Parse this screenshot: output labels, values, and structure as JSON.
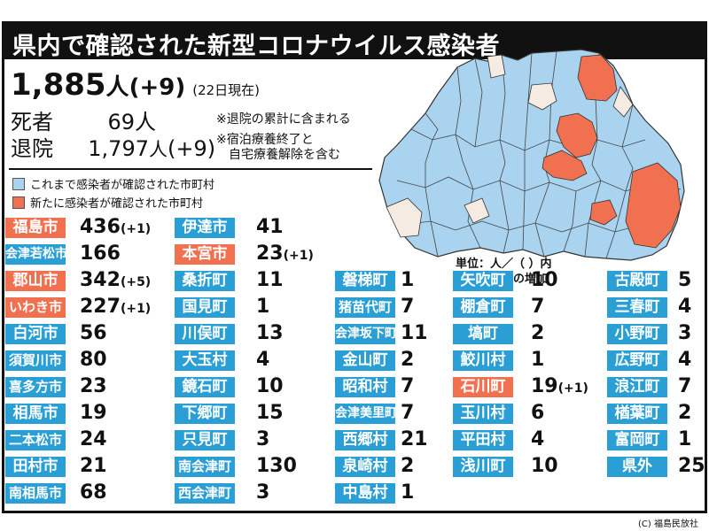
{
  "title": "県内で確認された新型コロナウイルス感染者",
  "total": {
    "count": "1,885",
    "unit": "人",
    "diff": "(+9)",
    "as_of": "(22日現在)"
  },
  "deaths": {
    "label": "死者",
    "value": "69",
    "unit": "人"
  },
  "recovered": {
    "label": "退院",
    "value": "1,797",
    "unit": "人",
    "diff": "(+9)"
  },
  "notes": {
    "deaths_note": "※退院の累計に含まれる",
    "recovered_note_1": "※宿泊療養終了と",
    "recovered_note_2": "自宅療養解除を含む"
  },
  "legend": {
    "confirmed_label": "これまで感染者が確認された市町村",
    "new_label": "新たに感染者が確認された市町村",
    "confirmed_color": "#a9d3ef",
    "new_color": "#f07050"
  },
  "unit_note": {
    "line1": "単位：人／（ ）内",
    "line2": "は前日からの増加"
  },
  "municipalities": [
    [
      {
        "name": "福島市",
        "value": "436",
        "diff": "(+1)",
        "new": true
      },
      {
        "name": "会津若松市",
        "value": "166",
        "diff": "",
        "new": false
      },
      {
        "name": "郡山市",
        "value": "342",
        "diff": "(+5)",
        "new": true
      },
      {
        "name": "いわき市",
        "value": "227",
        "diff": "(+1)",
        "new": true
      },
      {
        "name": "白河市",
        "value": "56",
        "diff": "",
        "new": false
      },
      {
        "name": "須賀川市",
        "value": "80",
        "diff": "",
        "new": false
      },
      {
        "name": "喜多方市",
        "value": "23",
        "diff": "",
        "new": false
      },
      {
        "name": "相馬市",
        "value": "19",
        "diff": "",
        "new": false
      },
      {
        "name": "二本松市",
        "value": "24",
        "diff": "",
        "new": false
      },
      {
        "name": "田村市",
        "value": "21",
        "diff": "",
        "new": false
      },
      {
        "name": "南相馬市",
        "value": "68",
        "diff": "",
        "new": false
      }
    ],
    [
      {
        "name": "伊達市",
        "value": "41",
        "diff": "",
        "new": false
      },
      {
        "name": "本宮市",
        "value": "23",
        "diff": "(+1)",
        "new": true
      },
      {
        "name": "桑折町",
        "value": "11",
        "diff": "",
        "new": false
      },
      {
        "name": "国見町",
        "value": "1",
        "diff": "",
        "new": false
      },
      {
        "name": "川俣町",
        "value": "13",
        "diff": "",
        "new": false
      },
      {
        "name": "大玉村",
        "value": "4",
        "diff": "",
        "new": false
      },
      {
        "name": "鏡石町",
        "value": "10",
        "diff": "",
        "new": false
      },
      {
        "name": "下郷町",
        "value": "15",
        "diff": "",
        "new": false
      },
      {
        "name": "只見町",
        "value": "3",
        "diff": "",
        "new": false
      },
      {
        "name": "南会津町",
        "value": "130",
        "diff": "",
        "new": false
      },
      {
        "name": "西会津町",
        "value": "3",
        "diff": "",
        "new": false
      }
    ],
    [
      {
        "name": "磐梯町",
        "value": "1",
        "diff": "",
        "new": false
      },
      {
        "name": "猪苗代町",
        "value": "7",
        "diff": "",
        "new": false
      },
      {
        "name": "会津坂下町",
        "value": "11",
        "diff": "",
        "new": false
      },
      {
        "name": "金山町",
        "value": "2",
        "diff": "",
        "new": false
      },
      {
        "name": "昭和村",
        "value": "7",
        "diff": "",
        "new": false
      },
      {
        "name": "会津美里町",
        "value": "7",
        "diff": "",
        "new": false
      },
      {
        "name": "西郷村",
        "value": "21",
        "diff": "",
        "new": false
      },
      {
        "name": "泉崎村",
        "value": "2",
        "diff": "",
        "new": false
      },
      {
        "name": "中島村",
        "value": "1",
        "diff": "",
        "new": false
      }
    ],
    [
      {
        "name": "矢吹町",
        "value": "10",
        "diff": "",
        "new": false
      },
      {
        "name": "棚倉町",
        "value": "7",
        "diff": "",
        "new": false
      },
      {
        "name": "塙町",
        "value": "2",
        "diff": "",
        "new": false
      },
      {
        "name": "鮫川村",
        "value": "1",
        "diff": "",
        "new": false
      },
      {
        "name": "石川町",
        "value": "19",
        "diff": "(+1)",
        "new": true
      },
      {
        "name": "玉川村",
        "value": "6",
        "diff": "",
        "new": false
      },
      {
        "name": "平田村",
        "value": "4",
        "diff": "",
        "new": false
      },
      {
        "name": "浅川町",
        "value": "10",
        "diff": "",
        "new": false
      }
    ],
    [
      {
        "name": "古殿町",
        "value": "5",
        "diff": "",
        "new": false
      },
      {
        "name": "三春町",
        "value": "4",
        "diff": "",
        "new": false
      },
      {
        "name": "小野町",
        "value": "3",
        "diff": "",
        "new": false
      },
      {
        "name": "広野町",
        "value": "4",
        "diff": "",
        "new": false
      },
      {
        "name": "浪江町",
        "value": "7",
        "diff": "",
        "new": false
      },
      {
        "name": "楢葉町",
        "value": "2",
        "diff": "",
        "new": false
      },
      {
        "name": "富岡町",
        "value": "1",
        "diff": "",
        "new": false
      },
      {
        "name": "県外",
        "value": "25",
        "diff": "",
        "new": false
      }
    ]
  ],
  "copyright": "(C) 福島民放社"
}
